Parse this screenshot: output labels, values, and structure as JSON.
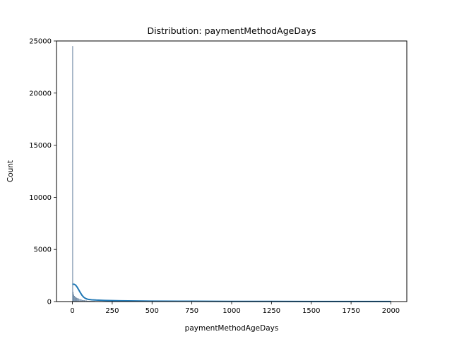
{
  "chart_data": {
    "type": "histogram",
    "title": "Distribution: paymentMethodAgeDays",
    "xlabel": "paymentMethodAgeDays",
    "ylabel": "Count",
    "xlim": [
      -100,
      2100
    ],
    "ylim": [
      0,
      25000
    ],
    "x_ticks": [
      0,
      250,
      500,
      750,
      1000,
      1250,
      1500,
      1750,
      2000
    ],
    "y_ticks": [
      0,
      5000,
      10000,
      15000,
      20000,
      25000
    ],
    "grid": false,
    "bars": [
      {
        "x0": 0,
        "x1": 2,
        "count": 24500
      },
      {
        "x0": 2,
        "x1": 6,
        "count": 900
      },
      {
        "x0": 6,
        "x1": 10,
        "count": 650
      },
      {
        "x0": 10,
        "x1": 14,
        "count": 520
      },
      {
        "x0": 14,
        "x1": 18,
        "count": 450
      },
      {
        "x0": 18,
        "x1": 22,
        "count": 400
      },
      {
        "x0": 22,
        "x1": 26,
        "count": 360
      },
      {
        "x0": 26,
        "x1": 30,
        "count": 330
      },
      {
        "x0": 30,
        "x1": 40,
        "count": 280
      },
      {
        "x0": 40,
        "x1": 50,
        "count": 220
      },
      {
        "x0": 50,
        "x1": 60,
        "count": 170
      },
      {
        "x0": 60,
        "x1": 75,
        "count": 120
      },
      {
        "x0": 75,
        "x1": 90,
        "count": 85
      },
      {
        "x0": 90,
        "x1": 110,
        "count": 60
      },
      {
        "x0": 110,
        "x1": 140,
        "count": 40
      },
      {
        "x0": 140,
        "x1": 180,
        "count": 28
      },
      {
        "x0": 180,
        "x1": 250,
        "count": 18
      },
      {
        "x0": 250,
        "x1": 400,
        "count": 10
      },
      {
        "x0": 400,
        "x1": 700,
        "count": 6
      },
      {
        "x0": 700,
        "x1": 1200,
        "count": 3
      },
      {
        "x0": 1200,
        "x1": 2000,
        "count": 1
      }
    ],
    "kde": {
      "x": [
        0,
        10,
        20,
        30,
        40,
        50,
        60,
        70,
        80,
        90,
        100,
        120,
        150,
        200,
        250,
        300,
        400,
        500,
        750,
        1000,
        1250,
        1500,
        1750,
        2000
      ],
      "y": [
        1650,
        1670,
        1580,
        1380,
        1120,
        850,
        610,
        430,
        320,
        250,
        210,
        170,
        140,
        110,
        90,
        75,
        58,
        45,
        30,
        20,
        14,
        10,
        7,
        5
      ]
    },
    "colors": {
      "bar_fill": "#8fa6bd",
      "bar_edge": "#5a7896",
      "kde": "#1f77b4"
    }
  }
}
